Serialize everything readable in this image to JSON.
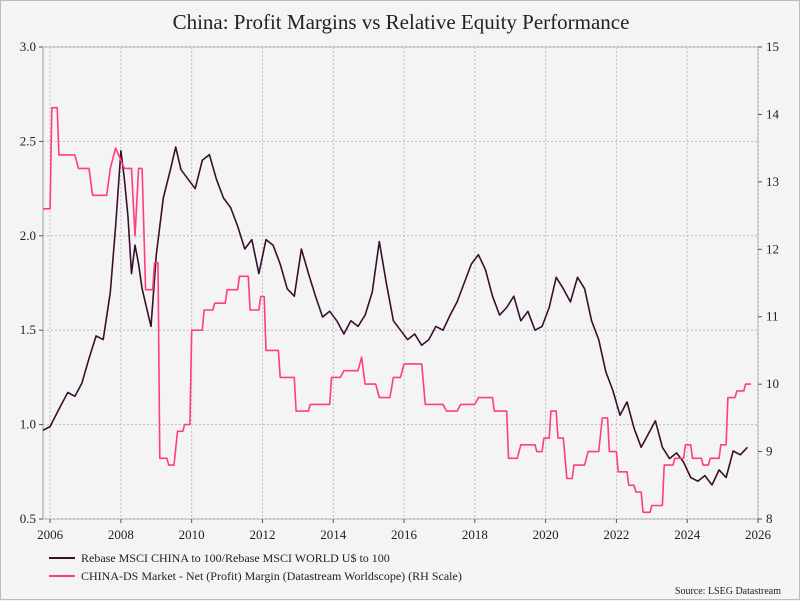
{
  "chart_data": {
    "type": "line",
    "title": "China: Profit Margins vs Relative Equity Performance",
    "source": "Source: LSEG Datastream",
    "grid": true,
    "legend_position": "bottom-left",
    "x_axis": {
      "range": [
        2005.8,
        2026.0
      ],
      "tick_labels": [
        "2006",
        "2008",
        "2010",
        "2012",
        "2014",
        "2016",
        "2018",
        "2020",
        "2022",
        "2024",
        "2026"
      ]
    },
    "y_left": {
      "range": [
        0.5,
        3.0
      ],
      "tick_labels": [
        "0.5",
        "1.0",
        "1.5",
        "2.0",
        "2.5",
        "3.0"
      ]
    },
    "y_right": {
      "range": [
        8,
        15
      ],
      "tick_labels": [
        "8",
        "9",
        "10",
        "11",
        "12",
        "13",
        "14",
        "15"
      ]
    },
    "series": [
      {
        "name": "Rebase MSCI CHINA to 100/Rebase MSCI WORLD U$ to 100",
        "color": "#3a0f2e",
        "axis": "left",
        "points": [
          [
            2005.8,
            0.97
          ],
          [
            2006.0,
            0.99
          ],
          [
            2006.3,
            1.1
          ],
          [
            2006.5,
            1.17
          ],
          [
            2006.7,
            1.15
          ],
          [
            2006.9,
            1.22
          ],
          [
            2007.1,
            1.35
          ],
          [
            2007.3,
            1.47
          ],
          [
            2007.5,
            1.45
          ],
          [
            2007.7,
            1.7
          ],
          [
            2007.85,
            2.05
          ],
          [
            2008.0,
            2.45
          ],
          [
            2008.1,
            2.3
          ],
          [
            2008.2,
            2.1
          ],
          [
            2008.3,
            1.8
          ],
          [
            2008.4,
            1.95
          ],
          [
            2008.5,
            1.85
          ],
          [
            2008.6,
            1.72
          ],
          [
            2008.75,
            1.6
          ],
          [
            2008.85,
            1.52
          ],
          [
            2009.0,
            1.9
          ],
          [
            2009.2,
            2.2
          ],
          [
            2009.4,
            2.35
          ],
          [
            2009.55,
            2.47
          ],
          [
            2009.7,
            2.35
          ],
          [
            2009.9,
            2.3
          ],
          [
            2010.1,
            2.25
          ],
          [
            2010.3,
            2.4
          ],
          [
            2010.5,
            2.43
          ],
          [
            2010.7,
            2.3
          ],
          [
            2010.9,
            2.2
          ],
          [
            2011.1,
            2.15
          ],
          [
            2011.3,
            2.05
          ],
          [
            2011.5,
            1.93
          ],
          [
            2011.7,
            1.98
          ],
          [
            2011.9,
            1.8
          ],
          [
            2012.1,
            1.98
          ],
          [
            2012.3,
            1.95
          ],
          [
            2012.5,
            1.85
          ],
          [
            2012.7,
            1.72
          ],
          [
            2012.9,
            1.68
          ],
          [
            2013.1,
            1.93
          ],
          [
            2013.3,
            1.8
          ],
          [
            2013.5,
            1.68
          ],
          [
            2013.7,
            1.57
          ],
          [
            2013.9,
            1.6
          ],
          [
            2014.1,
            1.55
          ],
          [
            2014.3,
            1.48
          ],
          [
            2014.5,
            1.55
          ],
          [
            2014.7,
            1.52
          ],
          [
            2014.9,
            1.58
          ],
          [
            2015.1,
            1.7
          ],
          [
            2015.3,
            1.97
          ],
          [
            2015.5,
            1.75
          ],
          [
            2015.7,
            1.55
          ],
          [
            2015.9,
            1.5
          ],
          [
            2016.1,
            1.45
          ],
          [
            2016.3,
            1.48
          ],
          [
            2016.5,
            1.42
          ],
          [
            2016.7,
            1.45
          ],
          [
            2016.9,
            1.52
          ],
          [
            2017.1,
            1.5
          ],
          [
            2017.3,
            1.58
          ],
          [
            2017.5,
            1.65
          ],
          [
            2017.7,
            1.75
          ],
          [
            2017.9,
            1.85
          ],
          [
            2018.1,
            1.9
          ],
          [
            2018.3,
            1.82
          ],
          [
            2018.5,
            1.68
          ],
          [
            2018.7,
            1.58
          ],
          [
            2018.9,
            1.62
          ],
          [
            2019.1,
            1.68
          ],
          [
            2019.3,
            1.55
          ],
          [
            2019.5,
            1.6
          ],
          [
            2019.7,
            1.5
          ],
          [
            2019.9,
            1.52
          ],
          [
            2020.1,
            1.62
          ],
          [
            2020.3,
            1.78
          ],
          [
            2020.5,
            1.72
          ],
          [
            2020.7,
            1.65
          ],
          [
            2020.9,
            1.78
          ],
          [
            2021.1,
            1.72
          ],
          [
            2021.3,
            1.55
          ],
          [
            2021.5,
            1.45
          ],
          [
            2021.7,
            1.28
          ],
          [
            2021.9,
            1.18
          ],
          [
            2022.1,
            1.05
          ],
          [
            2022.3,
            1.12
          ],
          [
            2022.5,
            0.98
          ],
          [
            2022.7,
            0.88
          ],
          [
            2022.9,
            0.95
          ],
          [
            2023.1,
            1.02
          ],
          [
            2023.3,
            0.88
          ],
          [
            2023.5,
            0.82
          ],
          [
            2023.7,
            0.85
          ],
          [
            2023.9,
            0.8
          ],
          [
            2024.1,
            0.72
          ],
          [
            2024.3,
            0.7
          ],
          [
            2024.5,
            0.73
          ],
          [
            2024.7,
            0.68
          ],
          [
            2024.9,
            0.76
          ],
          [
            2025.1,
            0.72
          ],
          [
            2025.3,
            0.86
          ],
          [
            2025.5,
            0.84
          ],
          [
            2025.7,
            0.88
          ]
        ]
      },
      {
        "name": "CHINA-DS Market - Net (Profit) Margin (Datastream Worldscope) (RH Scale)",
        "color": "#ff3d7f",
        "axis": "right",
        "points": [
          [
            2005.8,
            12.6
          ],
          [
            2006.0,
            12.6
          ],
          [
            2006.05,
            14.1
          ],
          [
            2006.2,
            14.1
          ],
          [
            2006.25,
            13.4
          ],
          [
            2006.6,
            13.4
          ],
          [
            2006.7,
            13.4
          ],
          [
            2006.8,
            13.2
          ],
          [
            2007.1,
            13.2
          ],
          [
            2007.2,
            12.8
          ],
          [
            2007.6,
            12.8
          ],
          [
            2007.7,
            13.2
          ],
          [
            2007.85,
            13.5
          ],
          [
            2008.1,
            13.2
          ],
          [
            2008.3,
            13.2
          ],
          [
            2008.4,
            12.2
          ],
          [
            2008.5,
            13.2
          ],
          [
            2008.6,
            13.2
          ],
          [
            2008.7,
            11.4
          ],
          [
            2008.9,
            11.4
          ],
          [
            2008.95,
            11.8
          ],
          [
            2009.05,
            11.8
          ],
          [
            2009.1,
            8.9
          ],
          [
            2009.3,
            8.9
          ],
          [
            2009.35,
            8.8
          ],
          [
            2009.5,
            8.8
          ],
          [
            2009.6,
            9.3
          ],
          [
            2009.75,
            9.3
          ],
          [
            2009.8,
            9.4
          ],
          [
            2009.95,
            9.4
          ],
          [
            2010.0,
            10.8
          ],
          [
            2010.3,
            10.8
          ],
          [
            2010.35,
            11.1
          ],
          [
            2010.6,
            11.1
          ],
          [
            2010.65,
            11.2
          ],
          [
            2010.95,
            11.2
          ],
          [
            2011.0,
            11.4
          ],
          [
            2011.3,
            11.4
          ],
          [
            2011.35,
            11.6
          ],
          [
            2011.6,
            11.6
          ],
          [
            2011.65,
            11.1
          ],
          [
            2011.9,
            11.1
          ],
          [
            2011.95,
            11.3
          ],
          [
            2012.05,
            11.3
          ],
          [
            2012.1,
            10.5
          ],
          [
            2012.45,
            10.5
          ],
          [
            2012.5,
            10.1
          ],
          [
            2012.9,
            10.1
          ],
          [
            2012.95,
            9.6
          ],
          [
            2013.3,
            9.6
          ],
          [
            2013.35,
            9.7
          ],
          [
            2013.9,
            9.7
          ],
          [
            2013.95,
            10.1
          ],
          [
            2014.2,
            10.1
          ],
          [
            2014.3,
            10.2
          ],
          [
            2014.7,
            10.2
          ],
          [
            2014.8,
            10.4
          ],
          [
            2014.9,
            10.0
          ],
          [
            2015.2,
            10.0
          ],
          [
            2015.3,
            9.8
          ],
          [
            2015.6,
            9.8
          ],
          [
            2015.7,
            10.1
          ],
          [
            2015.9,
            10.1
          ],
          [
            2016.0,
            10.3
          ],
          [
            2016.5,
            10.3
          ],
          [
            2016.6,
            9.7
          ],
          [
            2017.1,
            9.7
          ],
          [
            2017.2,
            9.6
          ],
          [
            2017.5,
            9.6
          ],
          [
            2017.6,
            9.7
          ],
          [
            2018.0,
            9.7
          ],
          [
            2018.1,
            9.8
          ],
          [
            2018.5,
            9.8
          ],
          [
            2018.55,
            9.6
          ],
          [
            2018.9,
            9.6
          ],
          [
            2018.95,
            8.9
          ],
          [
            2019.2,
            8.9
          ],
          [
            2019.3,
            9.1
          ],
          [
            2019.7,
            9.1
          ],
          [
            2019.75,
            9.0
          ],
          [
            2019.9,
            9.0
          ],
          [
            2019.95,
            9.2
          ],
          [
            2020.1,
            9.2
          ],
          [
            2020.15,
            9.6
          ],
          [
            2020.3,
            9.6
          ],
          [
            2020.35,
            9.2
          ],
          [
            2020.5,
            9.2
          ],
          [
            2020.6,
            8.6
          ],
          [
            2020.75,
            8.6
          ],
          [
            2020.8,
            8.8
          ],
          [
            2021.1,
            8.8
          ],
          [
            2021.2,
            9.0
          ],
          [
            2021.5,
            9.0
          ],
          [
            2021.6,
            9.5
          ],
          [
            2021.75,
            9.5
          ],
          [
            2021.8,
            9.0
          ],
          [
            2022.0,
            9.0
          ],
          [
            2022.05,
            8.7
          ],
          [
            2022.3,
            8.7
          ],
          [
            2022.35,
            8.5
          ],
          [
            2022.5,
            8.5
          ],
          [
            2022.55,
            8.4
          ],
          [
            2022.7,
            8.4
          ],
          [
            2022.75,
            8.1
          ],
          [
            2022.95,
            8.1
          ],
          [
            2023.0,
            8.2
          ],
          [
            2023.3,
            8.2
          ],
          [
            2023.35,
            8.8
          ],
          [
            2023.6,
            8.8
          ],
          [
            2023.65,
            8.9
          ],
          [
            2023.9,
            8.9
          ],
          [
            2023.95,
            9.1
          ],
          [
            2024.1,
            9.1
          ],
          [
            2024.15,
            8.9
          ],
          [
            2024.4,
            8.9
          ],
          [
            2024.45,
            8.8
          ],
          [
            2024.6,
            8.8
          ],
          [
            2024.65,
            8.9
          ],
          [
            2024.9,
            8.9
          ],
          [
            2024.95,
            9.1
          ],
          [
            2025.1,
            9.1
          ],
          [
            2025.15,
            9.8
          ],
          [
            2025.35,
            9.8
          ],
          [
            2025.4,
            9.9
          ],
          [
            2025.6,
            9.9
          ],
          [
            2025.65,
            10.0
          ],
          [
            2025.8,
            10.0
          ]
        ]
      }
    ]
  }
}
